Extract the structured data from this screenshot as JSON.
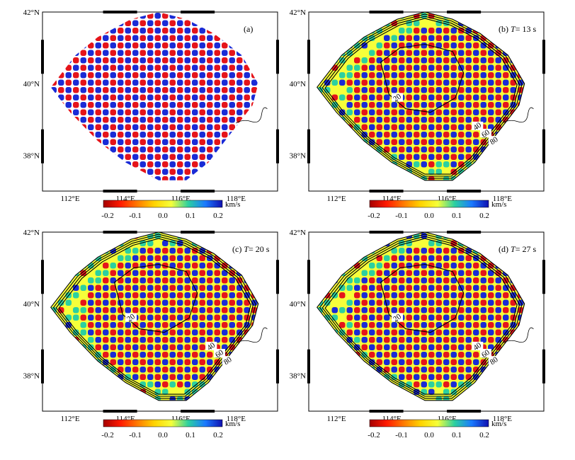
{
  "figure": {
    "panels": [
      {
        "id": "a",
        "label": "(a)",
        "period_prefix": "",
        "period_value": "",
        "period_unit": "",
        "contours": false,
        "pattern": "checker"
      },
      {
        "id": "b",
        "label": "(b)",
        "period_prefix": "T",
        "period_value": "= 13 s",
        "period_unit": "",
        "contours": true,
        "pattern": "recovered"
      },
      {
        "id": "c",
        "label": "(c)",
        "period_prefix": "T",
        "period_value": "= 20 s",
        "period_unit": "",
        "contours": true,
        "pattern": "recovered"
      },
      {
        "id": "d",
        "label": "(d)",
        "period_prefix": "T",
        "period_value": "= 27 s",
        "period_unit": "",
        "contours": true,
        "pattern": "recovered"
      }
    ],
    "lat_ticks": [
      "38°N",
      "40°N",
      "42°N"
    ],
    "lon_ticks": [
      "112°E",
      "114°E",
      "116°E",
      "118°E"
    ],
    "contour_labels": [
      "20",
      "40",
      "60",
      "80"
    ],
    "colorbar": {
      "unit": "km/s",
      "ticks_abc": [
        "-0.2",
        "-0.1",
        "0.0",
        "0.1",
        "0.2"
      ],
      "ticks_c": [
        "-0.2",
        "-0.1",
        "0.0",
        "0.1",
        "0.2"
      ],
      "ticks_d": [
        "-0.2",
        "-0.1",
        "0.0",
        "0.1",
        "0.2"
      ],
      "colors": [
        "#a50000",
        "#ff1a00",
        "#ff7a00",
        "#ffd400",
        "#f6ff3a",
        "#2cd0a0",
        "#1a7aff",
        "#1010b0"
      ]
    },
    "map_extent": {
      "lon": [
        111,
        119.5
      ],
      "lat": [
        37,
        42
      ]
    },
    "colors": {
      "red": "#e5141a",
      "blue": "#1a2bd6",
      "yellow": "#f6ff3a",
      "green": "#2cd0a0",
      "frame": "#000000"
    }
  }
}
